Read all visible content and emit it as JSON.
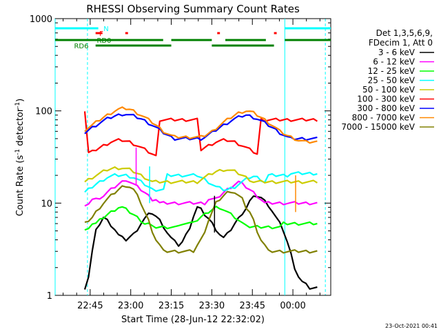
{
  "chart_data": {
    "type": "line",
    "title": "RHESSI Observing Summary Count Rates",
    "xlabel": "Start Time (28-Jun-12 22:32:02)",
    "ylabel": "Count Rate (s⁻¹ detector⁻¹)",
    "ylabel_main": "Count Rate (s",
    "ylabel_sup1": "-1",
    "ylabel_mid": " detector",
    "ylabel_sup2": "-1",
    "ylabel_end": ")",
    "yscale": "log",
    "ylim": [
      1,
      1000
    ],
    "yticks": [
      1,
      10,
      100,
      1000
    ],
    "ytick_labels": [
      "1",
      "10",
      "100",
      "1000"
    ],
    "xlim": [
      "22:32:02",
      "00:14:00"
    ],
    "xticks": [
      "22:45",
      "23:00",
      "23:15",
      "23:30",
      "23:45",
      "00:00"
    ],
    "grid": false,
    "legend_placement": "right",
    "legend_header": [
      "Det 1,3,5,6,9,",
      "FDecim 1, Att 0"
    ],
    "series": [
      {
        "name": "3 - 6 keV",
        "color": "#000000",
        "values": [
          1.2,
          1.6,
          3,
          5,
          6,
          7,
          6.5,
          5.8,
          5.2,
          4.5,
          4.2,
          4,
          4.3,
          4.6,
          5.2,
          6,
          6.8,
          7.5,
          7.8,
          7.2,
          6.5,
          5.6,
          4.8,
          4.2,
          3.8,
          3.5,
          3.8,
          4.5,
          5.5,
          7.2,
          9,
          8.5,
          7.5,
          6.8,
          6,
          5.2,
          4.6,
          4.2,
          4.6,
          5.2,
          6,
          6.8,
          7.8,
          8.8,
          10.5,
          11.5,
          12,
          11.5,
          10.5,
          9.5,
          8.2,
          7,
          6,
          5,
          3.8,
          2.8,
          2,
          1.6,
          1.4,
          1.3,
          1.2,
          1.2,
          1.2
        ]
      },
      {
        "name": "6 - 12 keV",
        "color": "#ff00ff",
        "values": [
          9,
          10,
          11,
          11,
          11.5,
          12,
          13,
          14,
          15,
          16,
          17,
          18,
          17,
          16,
          15,
          14,
          13,
          12,
          11,
          11,
          10,
          10,
          10,
          10,
          10,
          10,
          10,
          10,
          10,
          10,
          10,
          10,
          10,
          11,
          11,
          11,
          12,
          13,
          14,
          15,
          16,
          17,
          16,
          15,
          14,
          13,
          12,
          11,
          10,
          10,
          10,
          10,
          10,
          10,
          10,
          10,
          10,
          10,
          10,
          10,
          10,
          10,
          10
        ]
      },
      {
        "name": "12 - 25 keV",
        "color": "#00ff00",
        "values": [
          5,
          5.5,
          6,
          6,
          6.5,
          7,
          7.5,
          8,
          8.5,
          9,
          9,
          8.5,
          8,
          7.5,
          7,
          6.5,
          6,
          6,
          5.5,
          5.5,
          5.5,
          5.5,
          5.5,
          5.5,
          5.5,
          5.5,
          6,
          6,
          6,
          6.5,
          6.5,
          7,
          7.5,
          8,
          8.5,
          9,
          9,
          8.5,
          8,
          7.5,
          7,
          6.5,
          6,
          6,
          5.5,
          5.5,
          5.5,
          5.5,
          5.5,
          5.5,
          5.5,
          5.5,
          5.5,
          6,
          6,
          6,
          6,
          6,
          6,
          6,
          6,
          6,
          6
        ]
      },
      {
        "name": "25 - 50 keV",
        "color": "#00ffff",
        "values": [
          13,
          14,
          15,
          16,
          17,
          18,
          19,
          19.5,
          20,
          20,
          20,
          20,
          19.5,
          19,
          18,
          17,
          16,
          15,
          14,
          14,
          14,
          14,
          20,
          20,
          20,
          20,
          20,
          20,
          20,
          20,
          20,
          19,
          18,
          17,
          16,
          15,
          14.5,
          14,
          14,
          14.5,
          15,
          16,
          17,
          18,
          19,
          19.5,
          19,
          18,
          17,
          20,
          20,
          20,
          20,
          20,
          20,
          21,
          21,
          21,
          21,
          21,
          21,
          21,
          21
        ]
      },
      {
        "name": "50 - 100 keV",
        "color": "#cccc00",
        "values": [
          17,
          18,
          19,
          20,
          21,
          22,
          23,
          23.5,
          24,
          24,
          24,
          23.5,
          23,
          22,
          21,
          20,
          19,
          18,
          17,
          17,
          17,
          17,
          17,
          17,
          17,
          17,
          17,
          17,
          17,
          17,
          17,
          18,
          19,
          20,
          21,
          22,
          22.5,
          23,
          23,
          22.5,
          22,
          21,
          20,
          19,
          18,
          17,
          17,
          17,
          17,
          17,
          17,
          17,
          17,
          17,
          17,
          17,
          17,
          17,
          17,
          17,
          17,
          17,
          17
        ]
      },
      {
        "name": "100 - 300 keV",
        "color": "#ff0000",
        "values": [
          100,
          35,
          36,
          38,
          40,
          42,
          44,
          46,
          47,
          48,
          48,
          47,
          46,
          44,
          42,
          40,
          38,
          36,
          34,
          32,
          80,
          80,
          80,
          80,
          80,
          80,
          80,
          80,
          80,
          80,
          80,
          38,
          40,
          42,
          44,
          46,
          47,
          48,
          48,
          47,
          46,
          44,
          42,
          40,
          38,
          36,
          34,
          80,
          80,
          80,
          80,
          80,
          80,
          80,
          80,
          80,
          80,
          80,
          80,
          80,
          80,
          80,
          80
        ]
      },
      {
        "name": "300 - 800 keV",
        "color": "#0000ff",
        "values": [
          58,
          62,
          66,
          70,
          74,
          78,
          82,
          85,
          88,
          90,
          92,
          92,
          90,
          88,
          85,
          82,
          78,
          74,
          70,
          66,
          62,
          58,
          55,
          52,
          50,
          50,
          50,
          50,
          50,
          50,
          50,
          50,
          52,
          55,
          58,
          62,
          66,
          70,
          74,
          78,
          82,
          85,
          88,
          90,
          88,
          85,
          82,
          78,
          74,
          70,
          66,
          62,
          58,
          55,
          52,
          50,
          50,
          50,
          50,
          50,
          50,
          50,
          50
        ]
      },
      {
        "name": "800 - 7000 keV",
        "color": "#ff8800",
        "values": [
          62,
          66,
          70,
          75,
          80,
          85,
          90,
          95,
          100,
          104,
          106,
          106,
          104,
          100,
          95,
          90,
          85,
          80,
          75,
          70,
          65,
          60,
          57,
          54,
          52,
          52,
          52,
          52,
          52,
          52,
          52,
          52,
          54,
          57,
          60,
          65,
          70,
          75,
          80,
          85,
          90,
          95,
          98,
          100,
          98,
          95,
          90,
          85,
          80,
          75,
          70,
          65,
          60,
          57,
          54,
          52,
          50,
          48,
          47,
          46,
          46,
          46,
          46
        ]
      },
      {
        "name": "7000 - 15000 keV",
        "color": "#808000",
        "values": [
          6,
          6.5,
          7,
          8,
          9,
          10,
          11,
          12,
          13,
          14,
          15,
          15.5,
          15,
          14,
          12,
          10,
          8,
          6.5,
          5,
          4,
          3.5,
          3,
          3,
          3,
          3,
          3,
          3,
          3,
          3,
          3,
          3.5,
          4,
          5,
          6.5,
          8,
          10,
          11,
          12,
          13,
          13.5,
          13,
          12,
          11,
          9,
          8,
          6.5,
          5,
          4,
          3.5,
          3,
          3,
          3,
          3,
          3,
          3,
          3,
          3,
          3,
          3,
          3,
          3,
          3,
          3
        ]
      }
    ],
    "series_x_start": "22:43:00",
    "series_x_end": "00:09:00",
    "spikes": [
      {
        "series": "3 - 6 keV",
        "time": "23:31:00",
        "value": 12
      },
      {
        "series": "6 - 12 keV",
        "time": "23:02:00",
        "value": 40
      },
      {
        "series": "25 - 50 keV",
        "time": "23:07:00",
        "value": 25
      },
      {
        "series": "800 - 7000 keV",
        "time": "00:01:00",
        "value": 20
      }
    ],
    "flags": [
      {
        "label": "N",
        "color": "#00ffff",
        "segments": [
          [
            "22:32:02",
            "22:48:00"
          ],
          [
            "23:57:00",
            "00:14:00"
          ]
        ]
      },
      {
        "label": "F",
        "color": "#ff0000",
        "segments": [
          [
            "22:47:00",
            "22:49:30"
          ],
          [
            "22:58:00",
            "22:59:00"
          ],
          [
            "23:32:00",
            "23:33:00"
          ],
          [
            "23:53:00",
            "23:54:00"
          ]
        ]
      },
      {
        "label": "RD0",
        "color": "#008000",
        "segments": [
          [
            "22:32:02",
            "23:12:00"
          ],
          [
            "23:15:00",
            "23:30:00"
          ],
          [
            "23:35:00",
            "23:50:00"
          ],
          [
            "23:57:00",
            "00:14:00"
          ]
        ]
      },
      {
        "label": "RD6",
        "color": "#008000",
        "segments": [
          [
            "22:47:00",
            "23:15:00"
          ],
          [
            "23:30:00",
            "23:53:00"
          ]
        ]
      }
    ],
    "saa_bands": [
      [
        "22:32:02",
        "22:44:00"
      ],
      [
        "23:57:00",
        "00:12:00"
      ]
    ],
    "footer": "23-Oct-2021 00:41"
  }
}
